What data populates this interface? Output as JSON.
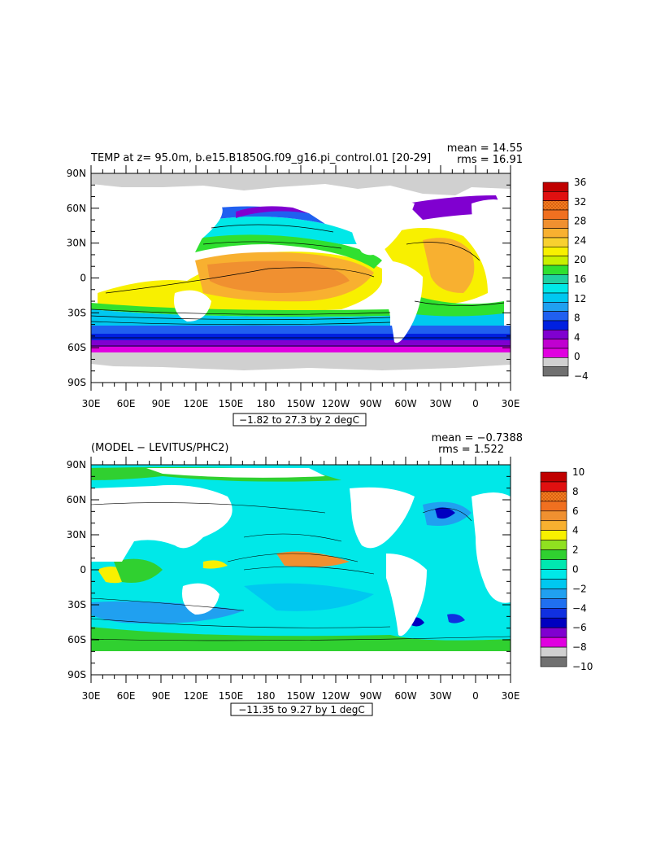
{
  "panels": [
    {
      "id": "top",
      "title": "TEMP at z=  95.0m, b.e15.B1850G.f09_g16.pi_control.01 [20-29]",
      "stats": {
        "mean": "mean = 14.55",
        "rms": "rms = 16.91"
      },
      "range_label": "−1.82 to 27.3 by 2 degC",
      "colorbar": {
        "labels": [
          "36",
          "32",
          "28",
          "24",
          "20",
          "16",
          "12",
          "8",
          "4",
          "0",
          "−4"
        ],
        "colors": [
          "#c00000",
          "#e01010",
          "#f03020",
          "#f07020",
          "#f09030",
          "#f8b030",
          "#f8d030",
          "#f8f000",
          "#c8f000",
          "#30e030",
          "#20d0a0",
          "#00e8e8",
          "#00c8f0",
          "#20a0f0",
          "#2060f0",
          "#0020e0",
          "#8000d0",
          "#c000d0",
          "#e000e0",
          "#d0d0d0",
          "#707070"
        ]
      },
      "lat_labels": [
        "90N",
        "60N",
        "30N",
        "0",
        "30S",
        "60S",
        "90S"
      ],
      "lon_labels": [
        "30E",
        "60E",
        "90E",
        "120E",
        "150E",
        "180",
        "150W",
        "120W",
        "90W",
        "60W",
        "30W",
        "0",
        "30E"
      ]
    },
    {
      "id": "bottom",
      "title": "(MODEL − LEVITUS/PHC2)",
      "stats": {
        "mean": "mean = −0.7388",
        "rms": "rms = 1.522"
      },
      "range_label": "−11.35 to 9.27 by 1 degC",
      "colorbar": {
        "labels": [
          "10",
          "8",
          "6",
          "4",
          "2",
          "0",
          "−2",
          "−4",
          "−6",
          "−8",
          "−10"
        ],
        "colors": [
          "#c00000",
          "#e01010",
          "#f03020",
          "#f07020",
          "#f09030",
          "#f8b030",
          "#f8f000",
          "#90e020",
          "#30d030",
          "#00e8b0",
          "#00e8e8",
          "#00c8f0",
          "#20a0f0",
          "#2070f0",
          "#1030e0",
          "#0000c0",
          "#8000d0",
          "#e000e0",
          "#d0d0d0",
          "#707070"
        ]
      },
      "lat_labels": [
        "90N",
        "60N",
        "30N",
        "0",
        "30S",
        "60S",
        "90S"
      ],
      "lon_labels": [
        "30E",
        "60E",
        "90E",
        "120E",
        "150E",
        "180",
        "150W",
        "120W",
        "90W",
        "60W",
        "30W",
        "0",
        "30E"
      ]
    }
  ]
}
